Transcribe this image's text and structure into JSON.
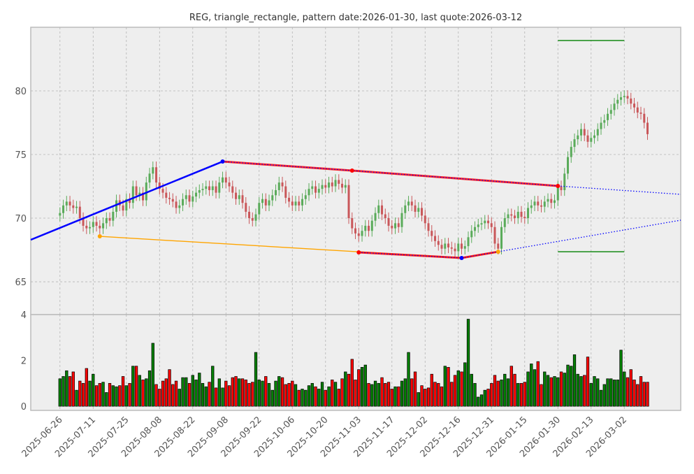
{
  "chart_data": {
    "type": "candlestick",
    "title": "REG, triangle_rectangle, pattern date:2026-01-30, last quote:2026-03-12",
    "price_axis": {
      "ylim": [
        62.42,
        85.0
      ],
      "ticks": [
        65,
        70,
        75,
        80
      ]
    },
    "volume_axis": {
      "ylim": [
        -0.18,
        4.0
      ],
      "ticks": [
        0,
        2,
        4
      ]
    },
    "x_ticks": [
      {
        "bar": 0,
        "label": "2025-06-26"
      },
      {
        "bar": 10,
        "label": "2025-07-11"
      },
      {
        "bar": 20,
        "label": "2025-07-25"
      },
      {
        "bar": 30,
        "label": "2025-08-08"
      },
      {
        "bar": 40,
        "label": "2025-08-22"
      },
      {
        "bar": 50,
        "label": "2025-09-08"
      },
      {
        "bar": 60,
        "label": "2025-09-22"
      },
      {
        "bar": 70,
        "label": "2025-10-06"
      },
      {
        "bar": 80,
        "label": "2025-10-20"
      },
      {
        "bar": 90,
        "label": "2025-11-03"
      },
      {
        "bar": 100,
        "label": "2025-11-17"
      },
      {
        "bar": 110,
        "label": "2025-12-02"
      },
      {
        "bar": 120,
        "label": "2025-12-16"
      },
      {
        "bar": 130,
        "label": "2025-12-31"
      },
      {
        "bar": 140,
        "label": "2026-01-15"
      },
      {
        "bar": 150,
        "label": "2026-01-30"
      },
      {
        "bar": 160,
        "label": "2026-02-13"
      },
      {
        "bar": 170,
        "label": "2026-03-02"
      }
    ],
    "x_range_bars": [
      -8.8,
      187
    ],
    "closes": [
      70.4,
      71.0,
      71.3,
      71.0,
      70.8,
      70.9,
      70.0,
      69.4,
      69.2,
      69.3,
      69.7,
      69.4,
      69.2,
      69.6,
      70.0,
      69.8,
      70.5,
      71.4,
      71.0,
      70.6,
      71.5,
      71.2,
      72.5,
      71.8,
      72.0,
      71.4,
      72.8,
      73.5,
      74.0,
      72.8,
      72.3,
      72.0,
      71.6,
      71.5,
      71.3,
      70.8,
      71.0,
      71.5,
      71.8,
      71.3,
      71.7,
      72.0,
      72.2,
      72.3,
      72.5,
      72.2,
      72.5,
      72.0,
      72.8,
      73.2,
      72.8,
      72.5,
      72.0,
      71.5,
      71.8,
      71.2,
      70.5,
      70.0,
      69.8,
      70.3,
      71.2,
      71.5,
      71.0,
      71.4,
      71.8,
      72.2,
      72.8,
      72.5,
      71.6,
      71.3,
      71.0,
      71.3,
      71.0,
      71.5,
      71.8,
      72.3,
      72.5,
      72.0,
      72.3,
      72.6,
      72.4,
      72.8,
      72.5,
      73.0,
      72.7,
      72.4,
      72.6,
      70.0,
      69.2,
      68.8,
      68.6,
      69.0,
      69.4,
      69.0,
      69.8,
      70.4,
      71.0,
      70.3,
      70.0,
      69.4,
      69.2,
      69.6,
      69.3,
      70.4,
      71.0,
      71.3,
      71.0,
      70.5,
      70.8,
      70.2,
      69.6,
      69.0,
      68.6,
      68.2,
      67.9,
      67.6,
      68.0,
      67.7,
      67.6,
      67.4,
      68.0,
      67.6,
      67.8,
      68.5,
      69.0,
      69.3,
      69.5,
      69.6,
      69.8,
      69.6,
      69.3,
      68.0,
      67.6,
      69.3,
      70.0,
      70.3,
      70.2,
      70.0,
      70.5,
      70.1,
      70.0,
      70.8,
      71.0,
      71.3,
      71.0,
      70.9,
      71.3,
      71.5,
      71.2,
      71.4,
      72.5,
      72.2,
      73.5,
      74.8,
      75.6,
      76.2,
      76.5,
      77.0,
      76.5,
      76.0,
      76.3,
      76.5,
      77.0,
      77.5,
      77.7,
      78.2,
      78.5,
      79.0,
      79.3,
      79.5,
      79.6,
      79.4,
      79.0,
      78.7,
      78.3,
      78.2,
      77.5,
      76.6
    ],
    "volumes": [
      1.2,
      1.3,
      1.55,
      1.3,
      1.5,
      0.7,
      1.1,
      1.0,
      1.65,
      1.1,
      1.4,
      0.9,
      1.0,
      1.05,
      0.6,
      1.0,
      0.9,
      0.85,
      0.9,
      1.3,
      0.9,
      1.0,
      1.75,
      1.75,
      1.35,
      1.15,
      1.2,
      1.55,
      2.75,
      0.95,
      0.75,
      1.1,
      1.2,
      1.6,
      0.95,
      1.1,
      0.75,
      1.25,
      1.25,
      1.0,
      1.35,
      1.15,
      1.45,
      1.0,
      0.85,
      1.05,
      1.75,
      0.8,
      1.2,
      0.8,
      1.1,
      0.9,
      1.25,
      1.3,
      1.2,
      1.2,
      1.15,
      1.0,
      1.05,
      2.35,
      1.15,
      1.1,
      1.3,
      1.0,
      0.7,
      1.1,
      1.3,
      1.25,
      0.95,
      1.0,
      1.1,
      0.95,
      0.7,
      0.75,
      0.7,
      0.9,
      1.0,
      0.85,
      0.75,
      1.05,
      0.7,
      0.85,
      1.15,
      1.05,
      0.75,
      1.2,
      1.5,
      1.4,
      2.05,
      1.15,
      1.6,
      1.7,
      1.8,
      1.0,
      0.95,
      1.1,
      1.0,
      1.25,
      1.0,
      1.05,
      0.75,
      0.85,
      0.85,
      1.1,
      1.2,
      2.35,
      1.2,
      1.5,
      0.6,
      0.9,
      0.75,
      0.8,
      1.4,
      1.05,
      1.0,
      0.85,
      1.75,
      1.7,
      1.05,
      1.35,
      1.55,
      1.5,
      1.9,
      3.8,
      1.4,
      1.0,
      0.4,
      0.5,
      0.7,
      0.75,
      1.0,
      1.35,
      1.1,
      1.15,
      1.4,
      1.2,
      1.75,
      1.4,
      1.0,
      1.0,
      1.05,
      1.5,
      1.85,
      1.6,
      1.95,
      0.95,
      1.5,
      1.35,
      1.25,
      1.3,
      1.25,
      1.5,
      1.45,
      1.8,
      1.75,
      2.25,
      1.4,
      1.3,
      1.35,
      2.15,
      1.0,
      1.3,
      1.2,
      0.7,
      0.95,
      1.2,
      1.2,
      1.15,
      1.15,
      2.45,
      1.5,
      1.25,
      1.6,
      1.15,
      0.95,
      1.3,
      1.05,
      1.05
    ],
    "pattern_lines": [
      {
        "name": "support-trend-line",
        "color": "#0000ff",
        "style": "solid",
        "points": [
          [
            -8.8,
            68.3
          ],
          [
            49,
            74.45
          ]
        ]
      },
      {
        "name": "upper-resistance-line",
        "color": "#ff0000",
        "style": "highlight",
        "points": [
          [
            49,
            74.45
          ],
          [
            88,
            73.74
          ],
          [
            150,
            72.53
          ]
        ]
      },
      {
        "name": "upper-projection-line",
        "color": "#0000ff",
        "style": "dotted",
        "points": [
          [
            150,
            72.53
          ],
          [
            187,
            71.87
          ]
        ]
      },
      {
        "name": "lower-base-line",
        "color": "#ffa500",
        "style": "solid",
        "points": [
          [
            12,
            68.57
          ],
          [
            121,
            66.87
          ],
          [
            132,
            67.36
          ]
        ]
      },
      {
        "name": "lower-support-line",
        "color": "#ff0000",
        "style": "highlight",
        "points": [
          [
            90,
            67.31
          ],
          [
            121,
            66.87
          ],
          [
            132,
            67.36
          ]
        ]
      },
      {
        "name": "lower-projection-line",
        "color": "#0000ff",
        "style": "dotted",
        "points": [
          [
            132,
            67.36
          ],
          [
            187,
            69.84
          ]
        ]
      },
      {
        "name": "target-upper-line",
        "color": "#008000",
        "style": "solid",
        "points": [
          [
            150,
            83.96
          ],
          [
            170,
            83.96
          ]
        ]
      },
      {
        "name": "target-lower-line",
        "color": "#008000",
        "style": "solid",
        "points": [
          [
            150,
            67.36
          ],
          [
            170,
            67.36
          ]
        ]
      }
    ],
    "markers": [
      {
        "bar": 49,
        "price": 74.45,
        "color": "#0000ff"
      },
      {
        "bar": 88,
        "price": 73.74,
        "color": "#ff0000"
      },
      {
        "bar": 150,
        "price": 72.53,
        "color": "#ff0000"
      },
      {
        "bar": 90,
        "price": 67.31,
        "color": "#ff0000"
      },
      {
        "bar": 121,
        "price": 66.87,
        "color": "#0000ff"
      },
      {
        "bar": 12,
        "price": 68.57,
        "color": "#ffa500"
      },
      {
        "bar": 132,
        "price": 67.36,
        "color": "#ffa500"
      }
    ],
    "colors": {
      "up": "#5aab5a",
      "down": "#c9575a",
      "vol_up": "#008000",
      "vol_down": "#ff0000",
      "panel_bg": "#eeeeee"
    }
  }
}
